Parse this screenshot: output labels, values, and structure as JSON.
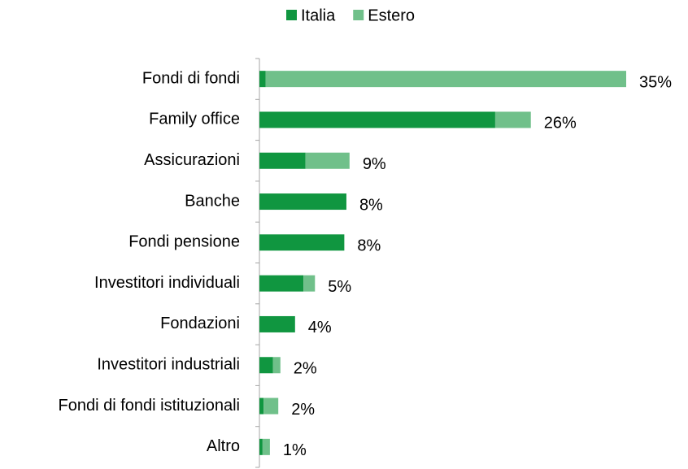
{
  "chart_data": {
    "type": "stacked_barh",
    "categories": [
      "Fondi di fondi",
      "Family office",
      "Assicurazioni",
      "Banche",
      "Fondi pensione",
      "Investitori individuali",
      "Fondazioni",
      "Investitori industriali",
      "Fondi di fondi istituzionali",
      "Altro"
    ],
    "series": [
      {
        "name": "Italia",
        "color": "#109640",
        "values": [
          0.6,
          22.5,
          4.4,
          8.3,
          8.1,
          4.2,
          3.4,
          1.3,
          0.4,
          0.3
        ]
      },
      {
        "name": "Estero",
        "color": "#70c08a",
        "values": [
          34.4,
          3.4,
          4.2,
          0,
          0,
          1.1,
          0,
          0.7,
          1.4,
          0.7
        ]
      }
    ],
    "totals": {
      "values": [
        35,
        26,
        9,
        8,
        8,
        5,
        4,
        2,
        2,
        1
      ],
      "value_labels": [
        "35%",
        "26%",
        "9%",
        "8%",
        "8%",
        "5%",
        "4%",
        "2%",
        "2%",
        "1%"
      ]
    },
    "xlim": [
      0,
      35
    ],
    "legend": "top"
  }
}
